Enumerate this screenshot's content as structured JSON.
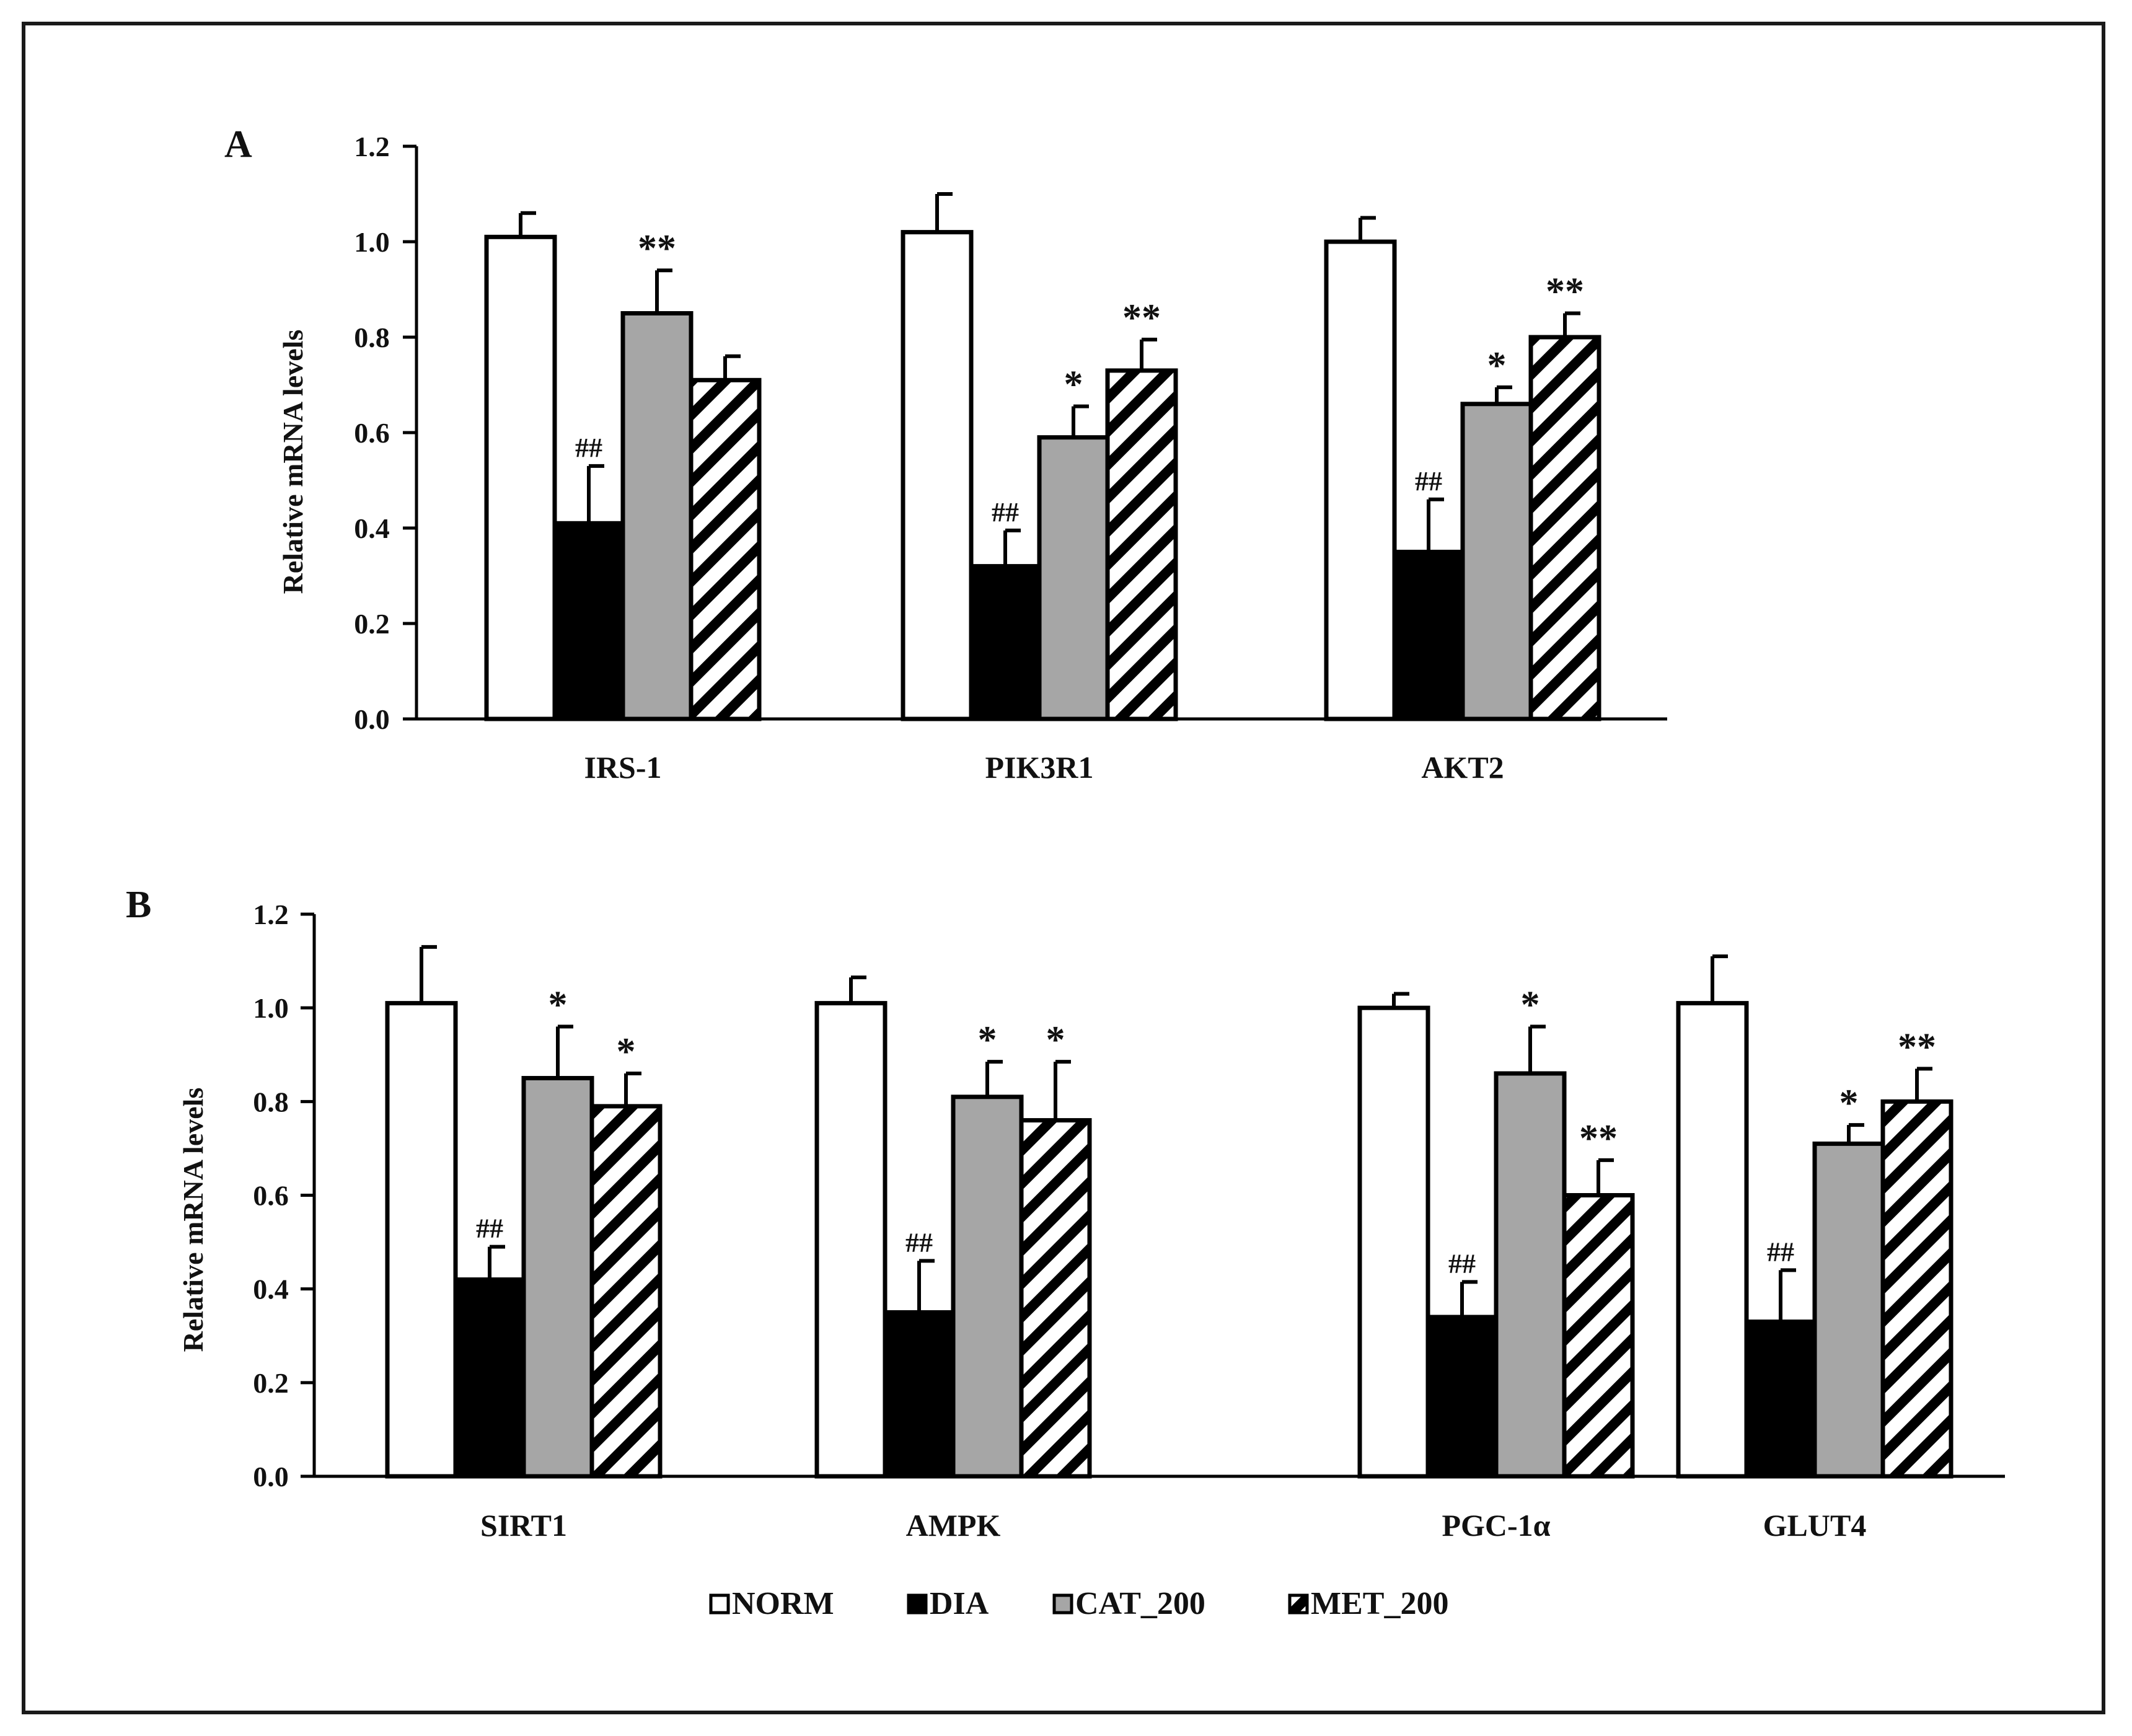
{
  "colors": {
    "NORM": "#ffffff",
    "DIA": "#000000",
    "CAT_200": "#a6a6a6",
    "MET_200": "#ffffff",
    "stroke": "#000000"
  },
  "legend": {
    "entries": [
      {
        "key": "NORM",
        "label": "NORM"
      },
      {
        "key": "DIA",
        "label": "DIA"
      },
      {
        "key": "CAT_200",
        "label": "CAT_200"
      },
      {
        "key": "MET_200",
        "label": "MET_200"
      }
    ]
  },
  "chart_data": [
    {
      "type": "bar",
      "panel": "A",
      "ylabel": "Relative mRNA levels",
      "ylim": [
        0,
        1.2
      ],
      "yticks": [
        "0.0",
        "0.2",
        "0.4",
        "0.6",
        "0.8",
        "1.0",
        "1.2"
      ],
      "categories": [
        "IRS-1",
        "PIK3R1",
        "AKT2"
      ],
      "series": [
        {
          "name": "NORM",
          "values": [
            1.01,
            1.02,
            1.0
          ],
          "errors": [
            0.05,
            0.08,
            0.05
          ],
          "annotations": [
            "",
            "",
            ""
          ]
        },
        {
          "name": "DIA",
          "values": [
            0.41,
            0.32,
            0.35
          ],
          "errors": [
            0.12,
            0.075,
            0.11
          ],
          "annotations": [
            "##",
            "##",
            "##"
          ]
        },
        {
          "name": "CAT_200",
          "values": [
            0.85,
            0.59,
            0.66
          ],
          "errors": [
            0.09,
            0.065,
            0.035
          ],
          "annotations": [
            "**",
            "*",
            "*"
          ]
        },
        {
          "name": "MET_200",
          "values": [
            0.71,
            0.73,
            0.8
          ],
          "errors": [
            0.05,
            0.065,
            0.05
          ],
          "annotations": [
            "",
            "**",
            "**"
          ]
        }
      ]
    },
    {
      "type": "bar",
      "panel": "B",
      "ylabel": "Relative mRNA levels",
      "ylim": [
        0,
        1.2
      ],
      "yticks": [
        "0.0",
        "0.2",
        "0.4",
        "0.6",
        "0.8",
        "1.0",
        "1.2"
      ],
      "categories": [
        "SIRT1",
        "AMPK",
        "PGC-1α",
        "GLUT4"
      ],
      "series": [
        {
          "name": "NORM",
          "values": [
            1.01,
            1.01,
            1.0,
            1.01
          ],
          "errors": [
            0.12,
            0.055,
            0.03,
            0.1
          ],
          "annotations": [
            "",
            "",
            "",
            ""
          ]
        },
        {
          "name": "DIA",
          "values": [
            0.42,
            0.35,
            0.34,
            0.33
          ],
          "errors": [
            0.07,
            0.11,
            0.075,
            0.11
          ],
          "annotations": [
            "##",
            "##",
            "##",
            "##"
          ]
        },
        {
          "name": "CAT_200",
          "values": [
            0.85,
            0.81,
            0.86,
            0.71
          ],
          "errors": [
            0.11,
            0.075,
            0.1,
            0.04
          ],
          "annotations": [
            "*",
            "*",
            "*",
            "*"
          ]
        },
        {
          "name": "MET_200",
          "values": [
            0.79,
            0.76,
            0.6,
            0.8
          ],
          "errors": [
            0.07,
            0.125,
            0.075,
            0.07
          ],
          "annotations": [
            "*",
            "*",
            "**",
            "**"
          ]
        }
      ]
    }
  ]
}
